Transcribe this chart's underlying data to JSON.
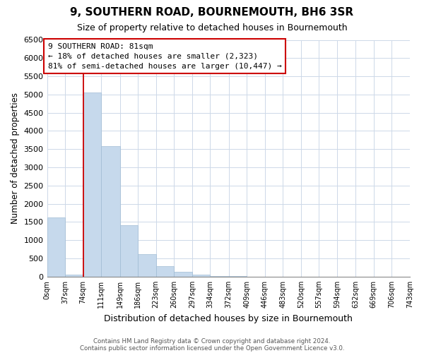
{
  "title": "9, SOUTHERN ROAD, BOURNEMOUTH, BH6 3SR",
  "subtitle": "Size of property relative to detached houses in Bournemouth",
  "xlabel": "Distribution of detached houses by size in Bournemouth",
  "ylabel": "Number of detached properties",
  "bar_color": "#c6d9ec",
  "bar_edgecolor": "#a0bcd4",
  "annotation_box_edgecolor": "#cc0000",
  "vline_color": "#cc0000",
  "vline_x": 74,
  "annotation_title": "9 SOUTHERN ROAD: 81sqm",
  "annotation_line1": "← 18% of detached houses are smaller (2,323)",
  "annotation_line2": "81% of semi-detached houses are larger (10,447) →",
  "footer_line1": "Contains HM Land Registry data © Crown copyright and database right 2024.",
  "footer_line2": "Contains public sector information licensed under the Open Government Licence v3.0.",
  "bin_edges": [
    0,
    37,
    74,
    111,
    149,
    186,
    223,
    260,
    297,
    334,
    372,
    409,
    446,
    483,
    520,
    557,
    594,
    632,
    669,
    706,
    743
  ],
  "bin_counts": [
    1620,
    45,
    5060,
    3580,
    1420,
    610,
    290,
    135,
    55,
    25,
    8,
    3,
    0,
    0,
    0,
    0,
    0,
    0,
    0,
    0
  ],
  "ylim": [
    0,
    6500
  ],
  "xlim": [
    0,
    743
  ],
  "tick_labels": [
    "0sqm",
    "37sqm",
    "74sqm",
    "111sqm",
    "149sqm",
    "186sqm",
    "223sqm",
    "260sqm",
    "297sqm",
    "334sqm",
    "372sqm",
    "409sqm",
    "446sqm",
    "483sqm",
    "520sqm",
    "557sqm",
    "594sqm",
    "632sqm",
    "669sqm",
    "706sqm",
    "743sqm"
  ],
  "yticks": [
    0,
    500,
    1000,
    1500,
    2000,
    2500,
    3000,
    3500,
    4000,
    4500,
    5000,
    5500,
    6000,
    6500
  ],
  "background_color": "#ffffff",
  "grid_color": "#cdd8e8"
}
